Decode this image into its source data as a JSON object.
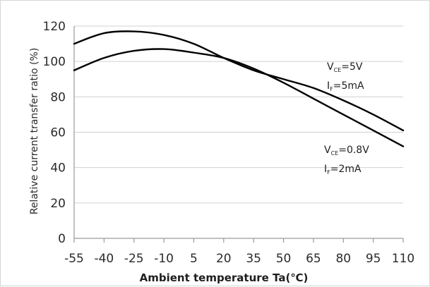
{
  "chart_data": {
    "type": "line",
    "title": "",
    "xlabel": "Ambient temperature Ta(℃)",
    "ylabel": "Relative current transfer ratio (%)",
    "xlim": [
      -55,
      110
    ],
    "ylim": [
      0,
      120
    ],
    "grid": true,
    "x_ticks": [
      -55,
      -40,
      -25,
      -10,
      5,
      20,
      35,
      50,
      65,
      80,
      95,
      110
    ],
    "y_ticks": [
      0,
      20,
      40,
      60,
      80,
      100,
      120
    ],
    "series": [
      {
        "x": [
          -55,
          -40,
          -25,
          -10,
          5,
          20,
          35,
          50,
          65,
          80,
          95,
          110
        ],
        "y": [
          110,
          116,
          117,
          115,
          110,
          102,
          95,
          90,
          85,
          78,
          70,
          61
        ],
        "annotation": {
          "vce": "5V",
          "if": "5mA"
        }
      },
      {
        "x": [
          -55,
          -40,
          -25,
          -10,
          5,
          20,
          35,
          50,
          65,
          80,
          95,
          110
        ],
        "y": [
          95,
          102,
          106,
          107,
          105,
          102,
          96,
          88,
          79,
          70,
          61,
          52
        ],
        "annotation": {
          "vce": "0.8V",
          "if": "2mA"
        }
      }
    ]
  }
}
